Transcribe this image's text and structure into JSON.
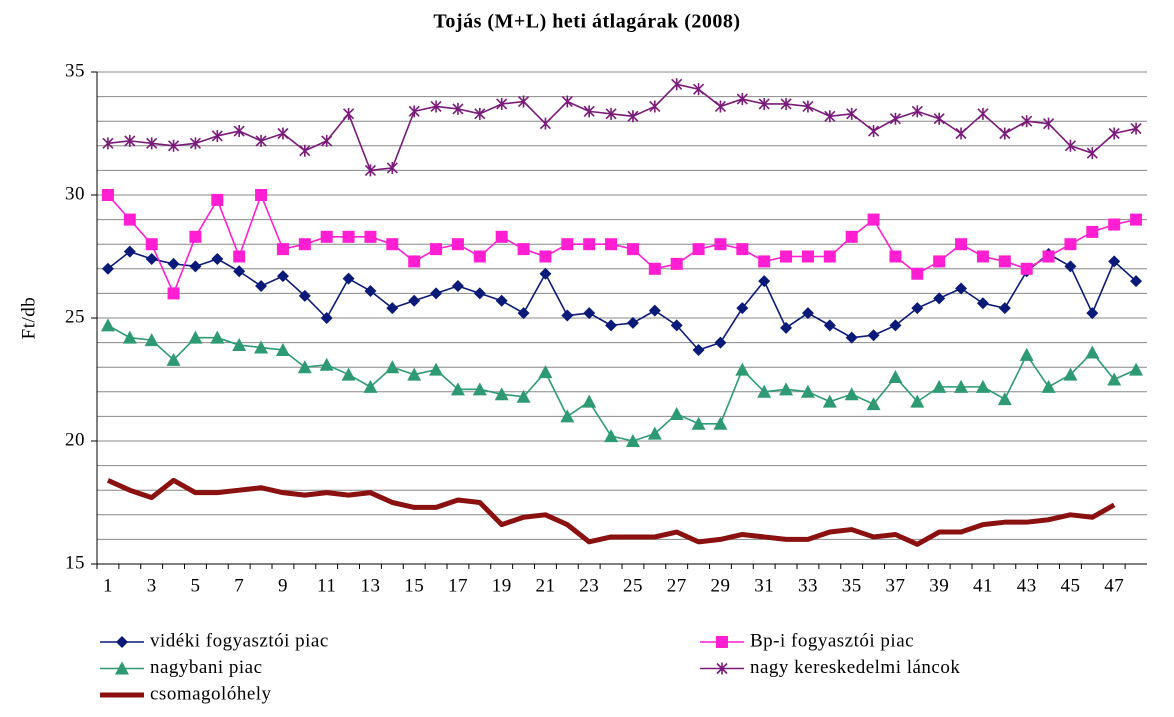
{
  "chart_data": {
    "type": "line",
    "title": "Tojás  (M+L) heti átlagárak (2008)",
    "y_label": "Ft/db",
    "categories": [
      1,
      null,
      3,
      null,
      5,
      null,
      7,
      null,
      9,
      null,
      11,
      null,
      13,
      null,
      15,
      null,
      17,
      null,
      19,
      null,
      21,
      null,
      23,
      null,
      25,
      null,
      27,
      null,
      29,
      null,
      31,
      null,
      33,
      null,
      35,
      null,
      37,
      null,
      39,
      null,
      41,
      null,
      43,
      null,
      45,
      null,
      47,
      null
    ],
    "ylim": [
      15,
      35
    ],
    "yticks": [
      15,
      20,
      25,
      30,
      35
    ],
    "grid_lines": [
      15,
      16,
      17,
      18,
      19,
      20,
      21,
      22,
      23,
      24,
      25,
      26,
      27,
      28,
      29,
      30,
      31,
      32,
      33,
      34,
      35
    ],
    "series": [
      {
        "name": "vidéki fogyasztói piac",
        "color": "#0a1a78",
        "marker": "diamond",
        "values": [
          27.0,
          27.7,
          27.4,
          27.2,
          27.1,
          27.4,
          26.9,
          26.3,
          26.7,
          25.9,
          25.0,
          26.6,
          26.1,
          25.4,
          25.7,
          26.0,
          26.3,
          26.0,
          25.7,
          25.2,
          26.8,
          25.1,
          25.2,
          24.7,
          24.8,
          25.3,
          24.7,
          23.7,
          24.0,
          25.4,
          26.5,
          24.6,
          25.2,
          24.7,
          24.2,
          24.3,
          24.7,
          25.4,
          25.8,
          26.2,
          25.6,
          25.4,
          26.9,
          27.6,
          27.1,
          25.2,
          27.3,
          26.5
        ]
      },
      {
        "name": "Bp-i fogyasztói piac",
        "color": "#ff1ed2",
        "marker": "square",
        "values": [
          30.0,
          29.0,
          28.0,
          26.0,
          28.3,
          29.8,
          27.5,
          30.0,
          27.8,
          28.0,
          28.3,
          28.3,
          28.3,
          28.0,
          27.3,
          27.8,
          28.0,
          27.5,
          28.3,
          27.8,
          27.5,
          28.0,
          28.0,
          28.0,
          27.8,
          27.0,
          27.2,
          27.8,
          28.0,
          27.8,
          27.3,
          27.5,
          27.5,
          27.5,
          28.3,
          29.0,
          27.5,
          26.8,
          27.3,
          28.0,
          27.5,
          27.3,
          27.0,
          27.5,
          28.0,
          28.5,
          28.8,
          29.0
        ]
      },
      {
        "name": "nagybani piac",
        "color": "#2e9a74",
        "marker": "triangle",
        "values": [
          24.7,
          24.2,
          24.1,
          23.3,
          24.2,
          24.2,
          23.9,
          23.8,
          23.7,
          23.0,
          23.1,
          22.7,
          22.2,
          23.0,
          22.7,
          22.9,
          22.1,
          22.1,
          21.9,
          21.8,
          22.8,
          21.0,
          21.6,
          20.2,
          20.0,
          20.3,
          21.1,
          20.7,
          20.7,
          22.9,
          22.0,
          22.1,
          22.0,
          21.6,
          21.9,
          21.5,
          22.6,
          21.6,
          22.2,
          22.2,
          22.2,
          21.7,
          23.5,
          22.2,
          22.7,
          23.6,
          22.5,
          22.9
        ]
      },
      {
        "name": "nagy kereskedelmi láncok",
        "color": "#7a1a7a",
        "marker": "star",
        "values": [
          32.1,
          32.2,
          32.1,
          32.0,
          32.1,
          32.4,
          32.6,
          32.2,
          32.5,
          31.8,
          32.2,
          33.3,
          31.0,
          31.1,
          33.4,
          33.6,
          33.5,
          33.3,
          33.7,
          33.8,
          32.9,
          33.8,
          33.4,
          33.3,
          33.2,
          33.6,
          34.5,
          34.3,
          33.6,
          33.9,
          33.7,
          33.7,
          33.6,
          33.2,
          33.3,
          32.6,
          33.1,
          33.4,
          33.1,
          32.5,
          33.3,
          32.5,
          33.0,
          32.9,
          32.0,
          31.7,
          32.5,
          32.7
        ]
      },
      {
        "name": "csomagolóhely",
        "color": "#8b1010",
        "marker": "none",
        "values": [
          18.4,
          18.0,
          17.7,
          18.4,
          17.9,
          17.9,
          18.0,
          18.1,
          17.9,
          17.8,
          17.9,
          17.8,
          17.9,
          17.5,
          17.3,
          17.3,
          17.6,
          17.5,
          16.6,
          16.9,
          17.0,
          16.6,
          15.9,
          16.1,
          16.1,
          16.1,
          16.3,
          15.9,
          16.0,
          16.2,
          16.1,
          16.0,
          16.0,
          16.3,
          16.4,
          16.1,
          16.2,
          15.8,
          16.3,
          16.3,
          16.6,
          16.7,
          16.7,
          16.8,
          17.0,
          16.9,
          17.4,
          null
        ]
      }
    ]
  }
}
